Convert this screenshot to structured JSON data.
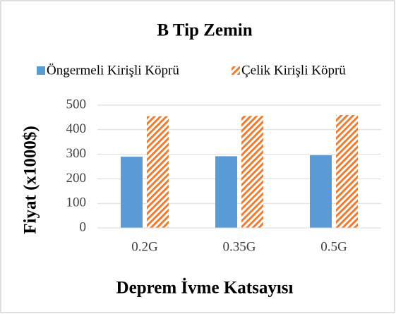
{
  "chart_data": {
    "type": "bar",
    "title": "B Tip Zemin",
    "x_label": "Deprem İvme Katsayısı",
    "y_label": "Fiyat (x1000$)",
    "categories": [
      "0.2G",
      "0.35G",
      "0.5G"
    ],
    "series": [
      {
        "name": "Öngermeli Kirişli Köprü",
        "color": "#5b9bd5",
        "values": [
          290,
          292,
          296
        ]
      },
      {
        "name": "Çelik Kirişli Köprü",
        "color": "#ed7d31",
        "pattern": "diagonal",
        "values": [
          455,
          456,
          460
        ]
      }
    ],
    "ylim": [
      0,
      500
    ],
    "yticks": [
      0,
      100,
      200,
      300,
      400,
      500
    ],
    "grid": true,
    "legend": "top"
  }
}
